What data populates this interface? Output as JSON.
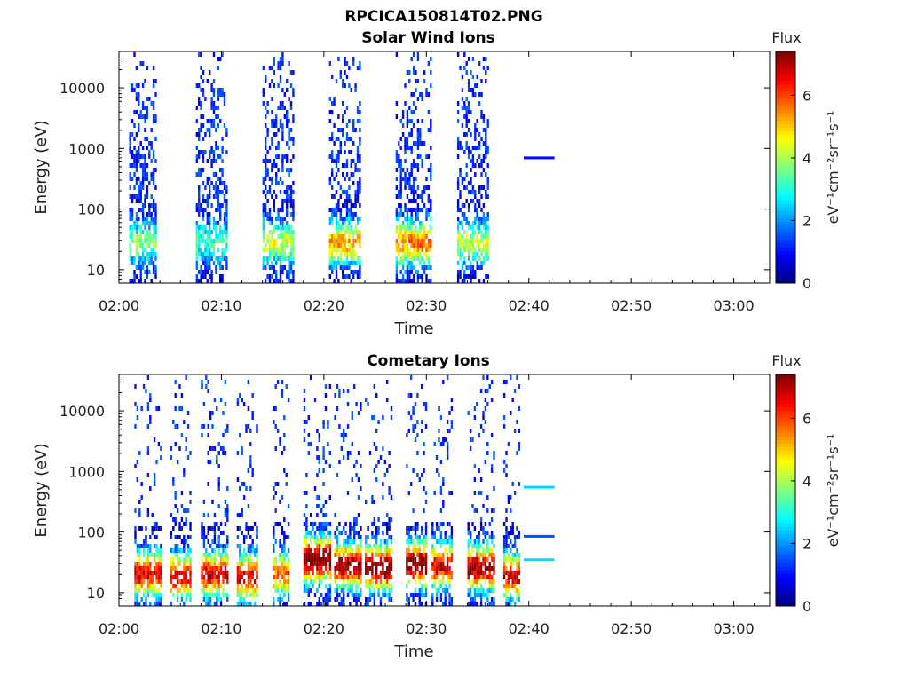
{
  "figure": {
    "title": "RPCICA150814T02.PNG"
  },
  "colorbar": {
    "colors": [
      "#00007f",
      "#0000ff",
      "#007fff",
      "#00ffff",
      "#7fff7f",
      "#ffff00",
      "#ff7f00",
      "#ff0000",
      "#7f0000"
    ]
  },
  "chart_data": [
    {
      "type": "heatmap",
      "title": "Solar Wind Ions",
      "xlabel": "Time",
      "ylabel": "Energy (eV)",
      "x_ticks": [
        "02:00",
        "02:10",
        "02:20",
        "02:30",
        "02:40",
        "02:50",
        "03:00"
      ],
      "xlim_minutes": [
        0,
        63.5
      ],
      "y_scale": "log",
      "ylim": [
        6,
        40000
      ],
      "y_ticks": [
        {
          "value": 10,
          "label": "10"
        },
        {
          "value": 100,
          "label": "100"
        },
        {
          "value": 1000,
          "label": "1000"
        },
        {
          "value": 10000,
          "label": "10000"
        }
      ],
      "colorbar": {
        "title": "Flux",
        "label": "eV⁻¹cm⁻²sr⁻¹s⁻¹",
        "range": [
          0,
          7.4
        ],
        "ticks": [
          "0",
          "2",
          "4",
          "6"
        ]
      },
      "bursts": [
        {
          "start": 1.0,
          "end": 3.5,
          "peak_energy": 30,
          "peak_flux": 3.0
        },
        {
          "start": 7.5,
          "end": 10.5,
          "peak_energy": 30,
          "peak_flux": 2.5
        },
        {
          "start": 14.0,
          "end": 17.0,
          "peak_energy": 30,
          "peak_flux": 3.5
        },
        {
          "start": 20.5,
          "end": 23.5,
          "peak_energy": 30,
          "peak_flux": 4.5
        },
        {
          "start": 27.0,
          "end": 30.5,
          "peak_energy": 30,
          "peak_flux": 4.8
        },
        {
          "start": 33.0,
          "end": 36.0,
          "peak_energy": 30,
          "peak_flux": 3.5
        }
      ],
      "lines": [
        {
          "start": 39.5,
          "end": 42.5,
          "energy": 700,
          "flux": 1.0
        }
      ]
    },
    {
      "type": "heatmap",
      "title": "Cometary Ions",
      "xlabel": "Time",
      "ylabel": "Energy (eV)",
      "x_ticks": [
        "02:00",
        "02:10",
        "02:20",
        "02:30",
        "02:40",
        "02:50",
        "03:00"
      ],
      "xlim_minutes": [
        0,
        63.5
      ],
      "y_scale": "log",
      "ylim": [
        6,
        40000
      ],
      "y_ticks": [
        {
          "value": 10,
          "label": "10"
        },
        {
          "value": 100,
          "label": "100"
        },
        {
          "value": 1000,
          "label": "1000"
        },
        {
          "value": 10000,
          "label": "10000"
        }
      ],
      "colorbar": {
        "title": "Flux",
        "label": "eV⁻¹cm⁻²sr⁻¹s⁻¹",
        "range": [
          0,
          7.4
        ],
        "ticks": [
          "0",
          "2",
          "4",
          "6"
        ]
      },
      "bursts": [
        {
          "start": 1.5,
          "end": 4.0,
          "peak_energy": 22,
          "peak_flux": 6.0
        },
        {
          "start": 5.0,
          "end": 7.0,
          "peak_energy": 20,
          "peak_flux": 6.0
        },
        {
          "start": 8.0,
          "end": 10.5,
          "peak_energy": 22,
          "peak_flux": 6.0
        },
        {
          "start": 11.5,
          "end": 13.5,
          "peak_energy": 20,
          "peak_flux": 6.0
        },
        {
          "start": 15.0,
          "end": 16.5,
          "peak_energy": 22,
          "peak_flux": 5.0
        },
        {
          "start": 18.0,
          "end": 20.5,
          "peak_energy": 38,
          "peak_flux": 7.0
        },
        {
          "start": 21.0,
          "end": 23.5,
          "peak_energy": 30,
          "peak_flux": 6.5
        },
        {
          "start": 24.0,
          "end": 26.5,
          "peak_energy": 28,
          "peak_flux": 7.0
        },
        {
          "start": 28.0,
          "end": 30.0,
          "peak_energy": 32,
          "peak_flux": 7.0
        },
        {
          "start": 30.5,
          "end": 32.5,
          "peak_energy": 30,
          "peak_flux": 6.0
        },
        {
          "start": 34.0,
          "end": 36.5,
          "peak_energy": 28,
          "peak_flux": 6.5
        },
        {
          "start": 37.5,
          "end": 39.0,
          "peak_energy": 20,
          "peak_flux": 6.0
        }
      ],
      "lines": [
        {
          "start": 39.5,
          "end": 42.5,
          "energy": 550,
          "flux": 2.5
        },
        {
          "start": 39.5,
          "end": 42.5,
          "energy": 85,
          "flux": 1.5
        },
        {
          "start": 39.5,
          "end": 42.5,
          "energy": 35,
          "flux": 2.5
        }
      ]
    }
  ]
}
